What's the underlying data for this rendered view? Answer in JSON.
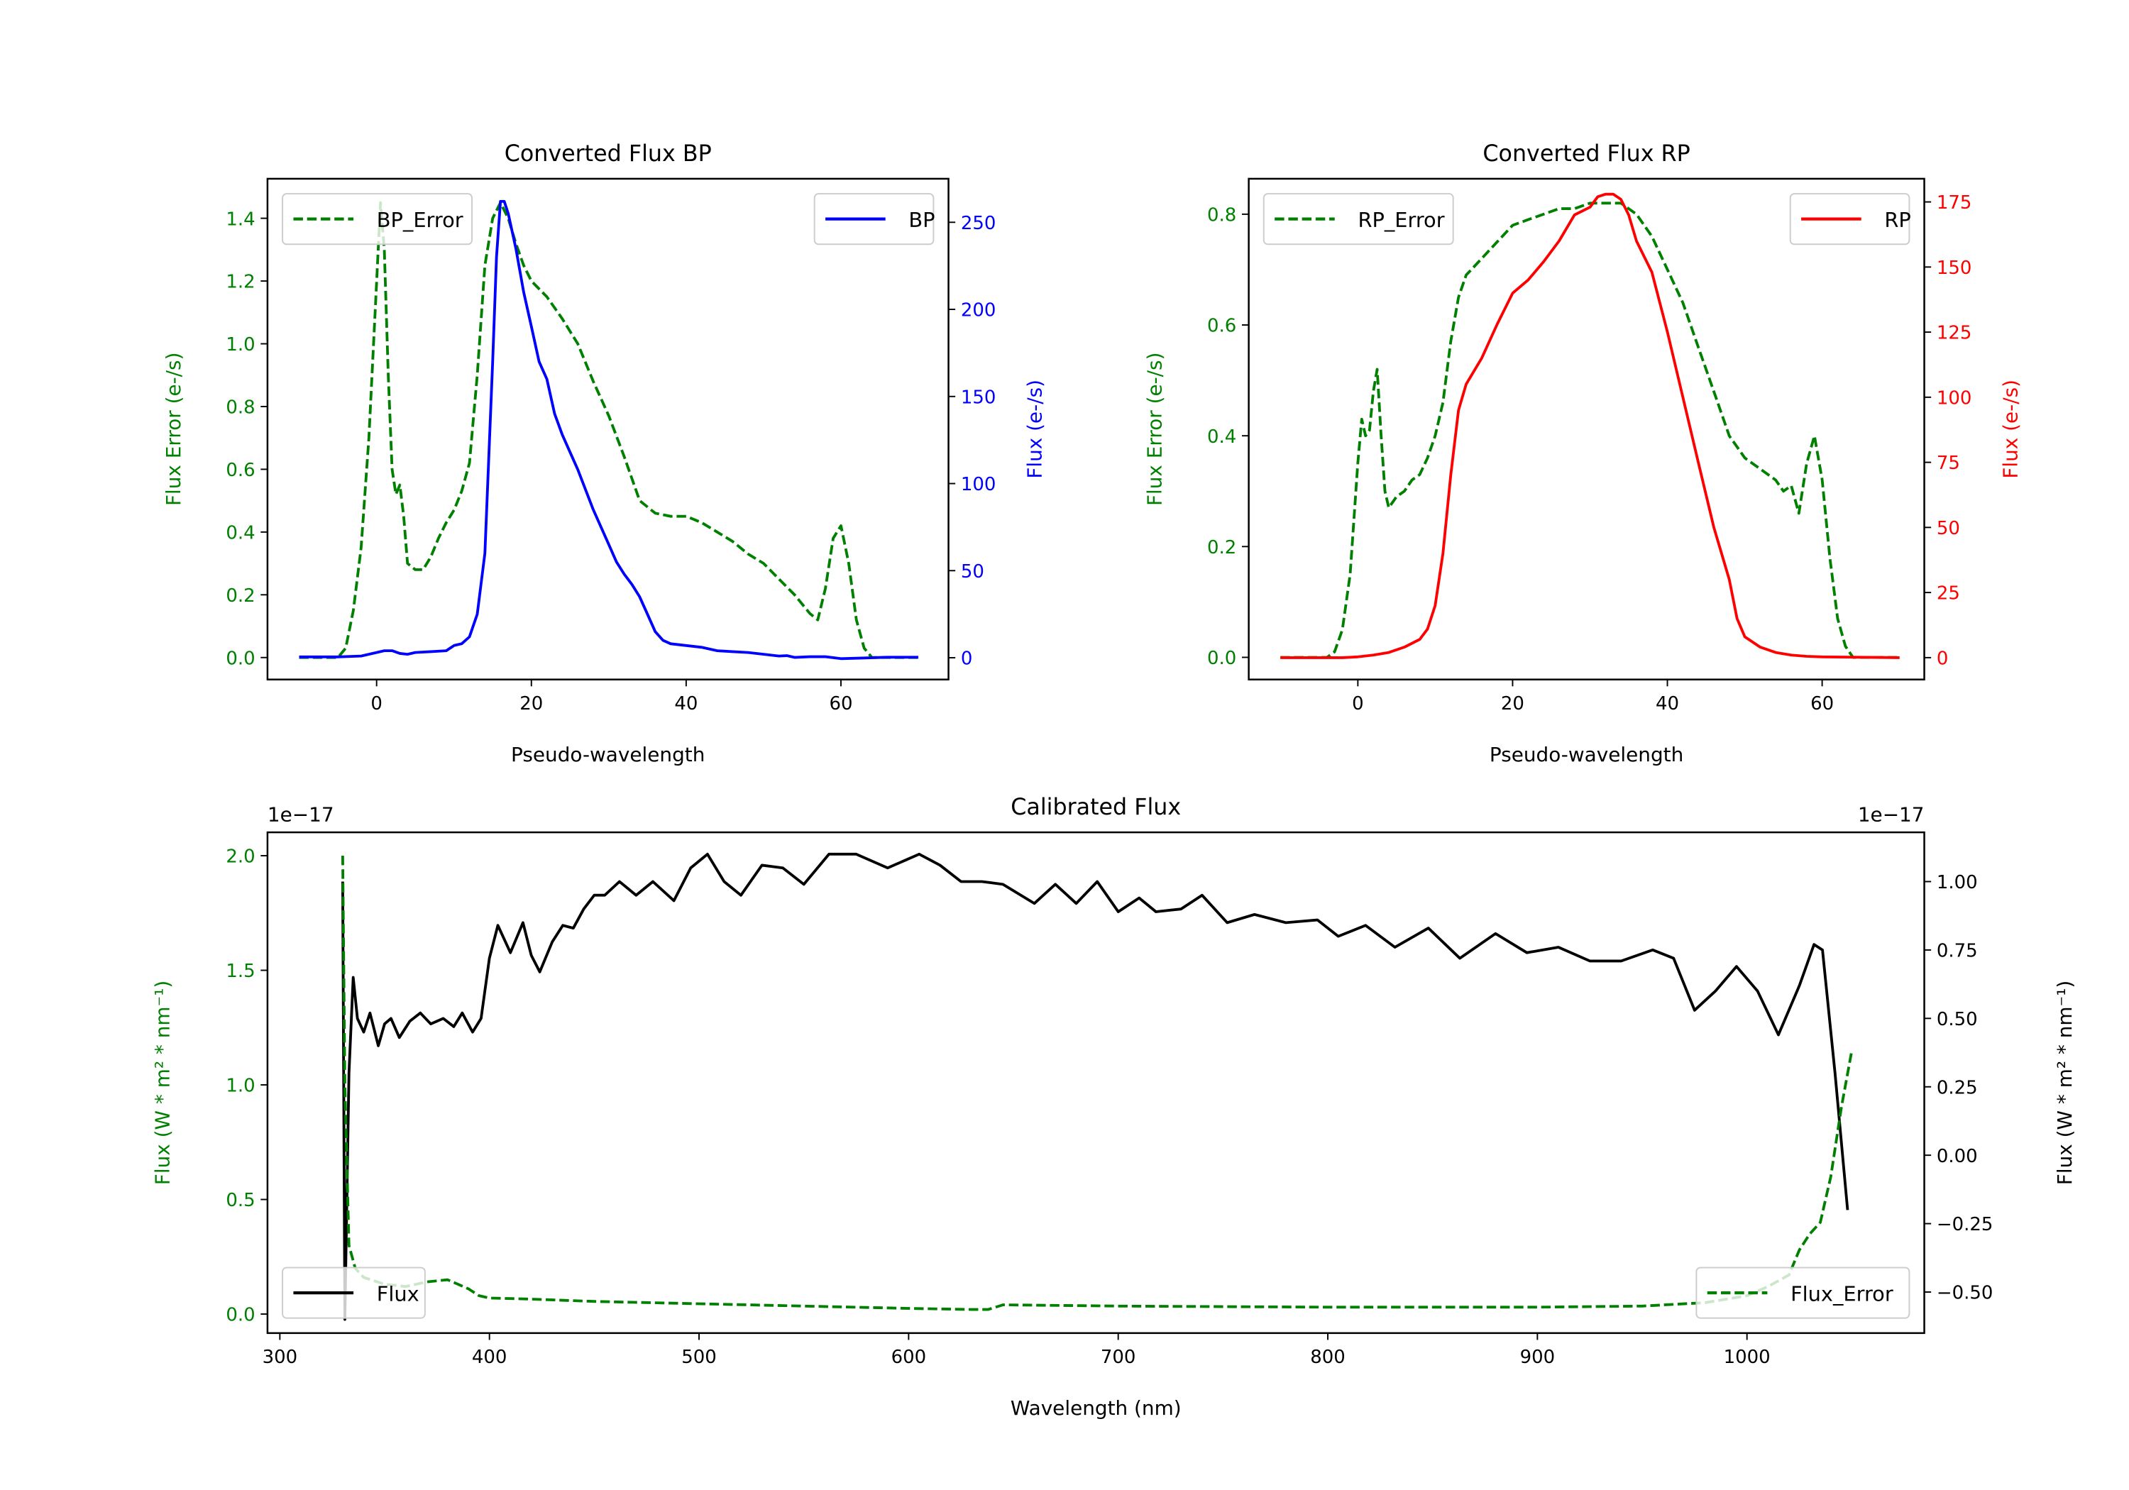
{
  "chart_data": [
    {
      "type": "line",
      "title": "Converted Flux BP",
      "xlabel": "Pseudo-wavelength",
      "ylabel_left": "Flux Error (e-/s)",
      "ylabel_right": "Flux (e-/s)",
      "xlim": [
        -14.1,
        73.9
      ],
      "ylim_left": [
        -0.07,
        1.526
      ],
      "ylim_right": [
        -12.5,
        275
      ],
      "xticks": [
        0,
        20,
        40,
        60
      ],
      "yticks_left": [
        "0.0",
        "0.2",
        "0.4",
        "0.6",
        "0.8",
        "1.0",
        "1.2",
        "1.4"
      ],
      "yticks_right": [
        "0",
        "50",
        "100",
        "150",
        "200",
        "250"
      ],
      "left_color": "#008000",
      "right_color": "#0000ff",
      "legends": [
        {
          "label": "BP_Error",
          "placement": "upper-left",
          "series": 0
        },
        {
          "label": "BP",
          "placement": "upper-right",
          "series": 1
        }
      ],
      "series": [
        {
          "name": "BP_Error",
          "axis": "left",
          "color": "#008000",
          "style": "dashed",
          "x": [
            -10,
            -5,
            -4,
            -3,
            -2,
            -1,
            0,
            0.5,
            1,
            1.5,
            2,
            2.5,
            3,
            3.5,
            4,
            5,
            6,
            7,
            8,
            9,
            10,
            11,
            12,
            13,
            14,
            15,
            16,
            17,
            18,
            19,
            20,
            22,
            24,
            26,
            28,
            30,
            32,
            34,
            36,
            38,
            40,
            42,
            44,
            46,
            48,
            50,
            52,
            54,
            56,
            57,
            58,
            59,
            60,
            61,
            62,
            63,
            64,
            70
          ],
          "y": [
            0,
            0,
            0.03,
            0.15,
            0.35,
            0.7,
            1.2,
            1.45,
            1.3,
            0.9,
            0.6,
            0.52,
            0.55,
            0.45,
            0.3,
            0.28,
            0.28,
            0.32,
            0.38,
            0.43,
            0.47,
            0.53,
            0.62,
            0.9,
            1.25,
            1.4,
            1.45,
            1.4,
            1.32,
            1.25,
            1.2,
            1.15,
            1.08,
            1.0,
            0.88,
            0.77,
            0.64,
            0.5,
            0.46,
            0.45,
            0.45,
            0.43,
            0.4,
            0.37,
            0.33,
            0.3,
            0.25,
            0.2,
            0.14,
            0.12,
            0.22,
            0.38,
            0.42,
            0.3,
            0.12,
            0.03,
            0,
            0
          ]
        },
        {
          "name": "BP",
          "axis": "right",
          "color": "#0000ff",
          "style": "solid",
          "x": [
            -10,
            -5,
            -2,
            0,
            1,
            2,
            3,
            4,
            5,
            7,
            9,
            10,
            11,
            12,
            13,
            14,
            15,
            15.5,
            16,
            16.5,
            17,
            18,
            19,
            20,
            21,
            22,
            23,
            24,
            25,
            26,
            28,
            30,
            31,
            32,
            33,
            34,
            35,
            36,
            37,
            38,
            40,
            42,
            44,
            46,
            48,
            50,
            52,
            53,
            54,
            56,
            58,
            60,
            62,
            66,
            70
          ],
          "y": [
            0.5,
            0.5,
            1,
            3,
            4,
            4,
            2.5,
            2,
            3,
            3.5,
            4,
            7,
            8,
            12,
            25,
            60,
            170,
            230,
            262,
            262,
            255,
            235,
            210,
            190,
            170,
            160,
            140,
            128,
            118,
            108,
            85,
            65,
            55,
            48,
            42,
            35,
            25,
            15,
            10,
            8,
            7,
            6,
            4,
            3.5,
            3,
            2,
            1,
            1.2,
            0.2,
            0.6,
            0.6,
            -0.5,
            -0.3,
            0.3,
            0.3
          ]
        }
      ]
    },
    {
      "type": "line",
      "title": "Converted Flux RP",
      "xlabel": "Pseudo-wavelength",
      "ylabel_left": "Flux Error (e-/s)",
      "ylabel_right": "Flux (e-/s)",
      "xlim": [
        -14.1,
        73.2
      ],
      "ylim_left": [
        -0.04,
        0.864
      ],
      "ylim_right": [
        -8.4,
        183.9
      ],
      "xticks": [
        0,
        20,
        40,
        60
      ],
      "yticks_left": [
        "0.0",
        "0.2",
        "0.4",
        "0.6",
        "0.8"
      ],
      "yticks_right": [
        "0",
        "25",
        "50",
        "75",
        "100",
        "125",
        "150",
        "175"
      ],
      "left_color": "#008000",
      "right_color": "#ff0000",
      "legends": [
        {
          "label": "RP_Error",
          "placement": "upper-left",
          "series": 0
        },
        {
          "label": "RP",
          "placement": "upper-right",
          "series": 1
        }
      ],
      "series": [
        {
          "name": "RP_Error",
          "axis": "left",
          "color": "#008000",
          "style": "dashed",
          "x": [
            -10,
            -4,
            -3,
            -2,
            -1,
            0,
            0.5,
            1,
            1.5,
            2,
            2.5,
            3,
            3.5,
            4,
            5,
            6,
            7,
            8,
            9,
            10,
            11,
            12,
            13,
            14,
            16,
            18,
            20,
            22,
            24,
            26,
            28,
            30,
            32,
            34,
            36,
            38,
            40,
            42,
            44,
            46,
            48,
            50,
            52,
            54,
            55,
            56,
            57,
            58,
            59,
            60,
            61,
            62,
            63,
            64,
            70
          ],
          "y": [
            0,
            0,
            0.01,
            0.05,
            0.15,
            0.35,
            0.43,
            0.4,
            0.41,
            0.48,
            0.52,
            0.4,
            0.3,
            0.27,
            0.29,
            0.3,
            0.32,
            0.33,
            0.36,
            0.4,
            0.46,
            0.57,
            0.65,
            0.69,
            0.72,
            0.75,
            0.78,
            0.79,
            0.8,
            0.81,
            0.81,
            0.82,
            0.82,
            0.82,
            0.8,
            0.76,
            0.7,
            0.64,
            0.56,
            0.48,
            0.4,
            0.36,
            0.34,
            0.32,
            0.3,
            0.31,
            0.26,
            0.35,
            0.4,
            0.32,
            0.18,
            0.07,
            0.02,
            0,
            0
          ]
        },
        {
          "name": "RP",
          "axis": "right",
          "color": "#ff0000",
          "style": "solid",
          "x": [
            -10,
            -2,
            0,
            2,
            4,
            6,
            8,
            9,
            10,
            11,
            12,
            13,
            14,
            16,
            18,
            20,
            22,
            24,
            26,
            28,
            30,
            31,
            32,
            33,
            34,
            35,
            36,
            38,
            40,
            42,
            44,
            46,
            48,
            49,
            50,
            52,
            54,
            56,
            58,
            60,
            70
          ],
          "y": [
            0,
            0,
            0.3,
            1,
            2,
            4,
            7,
            11,
            20,
            40,
            70,
            95,
            105,
            115,
            128,
            140,
            145,
            152,
            160,
            170,
            173,
            177,
            178,
            178,
            176,
            170,
            160,
            148,
            125,
            100,
            75,
            50,
            30,
            15,
            8,
            4,
            2,
            1,
            0.5,
            0.3,
            0
          ]
        }
      ]
    },
    {
      "type": "line",
      "title": "Calibrated Flux",
      "xlabel": "Wavelength (nm)",
      "ylabel_left": "Flux (W * m² * nm⁻¹)",
      "ylabel_right": "Flux (W * m² * nm⁻¹)",
      "offset_left": "1e−17",
      "offset_right": "1e−17",
      "xlim": [
        294.1,
        1084.6
      ],
      "ylim_left": [
        -0.083,
        2.102
      ],
      "ylim_right": [
        -0.65,
        1.18
      ],
      "xticks": [
        300,
        400,
        500,
        600,
        700,
        800,
        900,
        1000
      ],
      "yticks_left": [
        "0.0",
        "0.5",
        "1.0",
        "1.5",
        "2.0"
      ],
      "yticks_right": [
        "−0.50",
        "−0.25",
        "0.00",
        "0.25",
        "0.50",
        "0.75",
        "1.00"
      ],
      "left_color": "#008000",
      "right_color": "#000000",
      "legends": [
        {
          "label": "Flux",
          "placement": "lower-left",
          "series": 0
        },
        {
          "label": "Flux_Error",
          "placement": "lower-right",
          "series": 1
        }
      ],
      "series": [
        {
          "name": "Flux",
          "axis": "right",
          "color": "#000000",
          "style": "solid",
          "x": [
            330,
            331,
            333,
            335,
            337,
            340,
            343,
            347,
            350,
            353,
            357,
            362,
            367,
            372,
            378,
            383,
            387,
            392,
            396,
            400,
            404,
            410,
            416,
            420,
            424,
            430,
            435,
            440,
            445,
            450,
            455,
            462,
            470,
            478,
            488,
            496,
            504,
            512,
            520,
            530,
            540,
            550,
            562,
            575,
            590,
            605,
            615,
            625,
            635,
            645,
            660,
            670,
            680,
            690,
            700,
            710,
            718,
            730,
            740,
            752,
            765,
            780,
            795,
            805,
            818,
            832,
            848,
            863,
            880,
            895,
            910,
            925,
            940,
            955,
            965,
            975,
            985,
            995,
            1005,
            1015,
            1025,
            1032,
            1036,
            1042,
            1048
          ],
          "y": [
            1.0,
            -0.6,
            0.3,
            0.65,
            0.5,
            0.45,
            0.52,
            0.4,
            0.48,
            0.5,
            0.43,
            0.49,
            0.52,
            0.48,
            0.5,
            0.47,
            0.52,
            0.45,
            0.5,
            0.72,
            0.84,
            0.74,
            0.85,
            0.73,
            0.67,
            0.78,
            0.84,
            0.83,
            0.9,
            0.95,
            0.95,
            1.0,
            0.95,
            1.0,
            0.93,
            1.05,
            1.1,
            1.0,
            0.95,
            1.06,
            1.05,
            0.99,
            1.1,
            1.1,
            1.05,
            1.1,
            1.06,
            1.0,
            1.0,
            0.99,
            0.92,
            0.99,
            0.92,
            1.0,
            0.89,
            0.94,
            0.89,
            0.9,
            0.95,
            0.85,
            0.88,
            0.85,
            0.86,
            0.8,
            0.84,
            0.76,
            0.83,
            0.72,
            0.81,
            0.74,
            0.76,
            0.71,
            0.71,
            0.75,
            0.72,
            0.53,
            0.6,
            0.69,
            0.6,
            0.44,
            0.62,
            0.77,
            0.75,
            0.3,
            -0.2
          ]
        },
        {
          "name": "Flux_Error",
          "axis": "left",
          "color": "#008000",
          "style": "dashed",
          "x": [
            330,
            331,
            333,
            336,
            340,
            350,
            360,
            370,
            380,
            385,
            390,
            395,
            400,
            420,
            450,
            500,
            550,
            600,
            630,
            638,
            645,
            700,
            800,
            900,
            950,
            980,
            1000,
            1010,
            1020,
            1025,
            1030,
            1035,
            1040,
            1045,
            1050
          ],
          "y": [
            2.0,
            1.0,
            0.3,
            0.2,
            0.16,
            0.13,
            0.12,
            0.14,
            0.15,
            0.13,
            0.11,
            0.08,
            0.07,
            0.065,
            0.055,
            0.045,
            0.035,
            0.025,
            0.02,
            0.02,
            0.04,
            0.035,
            0.03,
            0.03,
            0.035,
            0.05,
            0.08,
            0.12,
            0.17,
            0.28,
            0.35,
            0.4,
            0.6,
            0.9,
            1.15
          ]
        }
      ]
    }
  ]
}
